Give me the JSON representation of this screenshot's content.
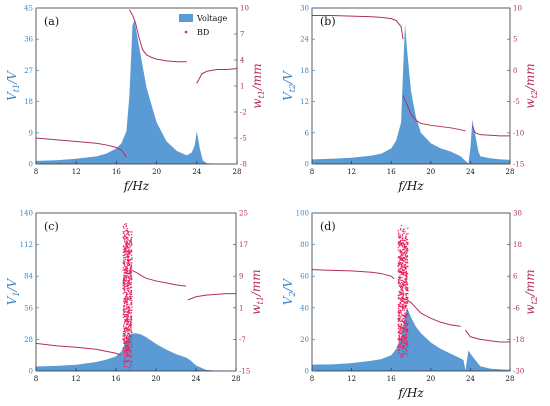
{
  "chart_data": [
    {
      "panel": "(a)",
      "type": "area",
      "xlabel": "f/Hz",
      "ylabel_left": "V_t1/V",
      "ylabel_right": "w_t1/mm",
      "xlim": [
        8,
        28
      ],
      "ylim_left": [
        0,
        45
      ],
      "ylim_right": [
        -8,
        10
      ],
      "xticks": [
        8,
        12,
        16,
        20,
        24,
        28
      ],
      "yticks_left": [
        0,
        9,
        18,
        27,
        36,
        45
      ],
      "yticks_right": [
        -8,
        -5,
        -2,
        1,
        4,
        7,
        10
      ],
      "legend": {
        "position": "top-right",
        "entries": [
          "Voltage",
          "BD"
        ]
      },
      "series": [
        {
          "name": "Voltage",
          "kind": "area",
          "color": "#5b9bd5",
          "x": [
            8,
            10,
            12,
            14,
            15,
            16,
            16.5,
            17,
            17.3,
            17.6,
            17.8,
            18,
            18.5,
            19,
            20,
            21,
            22,
            23,
            23.5,
            23.8,
            24,
            24.3,
            24.6,
            25,
            26,
            27,
            28
          ],
          "y": [
            0.9,
            1.1,
            1.5,
            2.2,
            3.0,
            4.5,
            6.0,
            9.5,
            20.0,
            40.0,
            41.5,
            38.0,
            30.0,
            22.0,
            12.0,
            6.5,
            3.8,
            2.5,
            3.3,
            5.5,
            9.5,
            4.5,
            1.0,
            0.2,
            0.1,
            0.1,
            0.1
          ]
        },
        {
          "name": "BD",
          "kind": "line",
          "color": "#b0305e",
          "axis": "right",
          "segments": [
            {
              "x": [
                8,
                10,
                12,
                14,
                15,
                16,
                16.5,
                17
              ],
              "y": [
                -5.0,
                -5.2,
                -5.4,
                -5.6,
                -5.8,
                -6.1,
                -6.4,
                -7.2
              ]
            },
            {
              "x": [
                17.3,
                17.6,
                17.9,
                18.2,
                18.6,
                19,
                19.5,
                20,
                21,
                22,
                23
              ],
              "y": [
                9.8,
                9.2,
                8.3,
                6.8,
                5.2,
                4.6,
                4.3,
                4.1,
                3.9,
                3.8,
                3.8
              ]
            },
            {
              "x": [
                24,
                24.5,
                25,
                25.5,
                26,
                27,
                28
              ],
              "y": [
                1.3,
                2.4,
                2.7,
                2.8,
                2.9,
                2.9,
                3.0
              ]
            }
          ]
        }
      ]
    },
    {
      "panel": "(b)",
      "type": "area",
      "xlabel": "f/Hz",
      "ylabel_left": "V_t2/V",
      "ylabel_right": "w_t2/mm",
      "xlim": [
        8,
        28
      ],
      "ylim_left": [
        0,
        30
      ],
      "ylim_right": [
        -15,
        10
      ],
      "xticks": [
        8,
        12,
        16,
        20,
        24,
        28
      ],
      "yticks_left": [
        0,
        6,
        12,
        18,
        24,
        30
      ],
      "yticks_right": [
        -15,
        -10,
        -5,
        0,
        5,
        10
      ],
      "series": [
        {
          "name": "Voltage",
          "kind": "area",
          "color": "#5b9bd5",
          "x": [
            8,
            10,
            12,
            14,
            15,
            16,
            16.5,
            17,
            17.2,
            17.4,
            17.6,
            18,
            18.5,
            19,
            20,
            21,
            22,
            23,
            23.5,
            23.8,
            24,
            24.2,
            24.4,
            24.8,
            25,
            26,
            27,
            28
          ],
          "y": [
            0.9,
            1.0,
            1.2,
            1.6,
            2.0,
            3.0,
            4.5,
            8.0,
            18.0,
            27.0,
            22.0,
            14.0,
            9.0,
            6.0,
            4.0,
            3.0,
            2.4,
            1.5,
            0.6,
            0.1,
            3.0,
            8.5,
            6.5,
            2.5,
            1.5,
            1.1,
            0.9,
            0.8
          ]
        },
        {
          "name": "BD",
          "kind": "line",
          "color": "#b0305e",
          "axis": "right",
          "segments": [
            {
              "x": [
                8,
                10,
                12,
                14,
                15,
                16,
                16.5,
                17,
                17.2
              ],
              "y": [
                8.8,
                8.8,
                8.7,
                8.6,
                8.5,
                8.3,
                8.0,
                7.0,
                5.0
              ]
            },
            {
              "x": [
                17.2,
                17.6,
                18,
                18.5,
                19,
                20,
                21,
                22,
                23,
                23.5
              ],
              "y": [
                -4.0,
                -5.5,
                -7.0,
                -8.0,
                -8.5,
                -8.8,
                -9.0,
                -9.2,
                -9.5,
                -9.7
              ]
            },
            {
              "x": [
                24.2,
                24.5,
                25,
                26,
                27,
                28
              ],
              "y": [
                -9.0,
                -10.0,
                -10.3,
                -10.4,
                -10.5,
                -10.5
              ]
            }
          ]
        }
      ]
    },
    {
      "panel": "(c)",
      "type": "area",
      "xlabel": "",
      "ylabel_left": "V_1/V",
      "ylabel_right": "w_t1/mm",
      "xlim": [
        8,
        28
      ],
      "ylim_left": [
        0,
        140
      ],
      "ylim_right": [
        -15,
        25
      ],
      "xticks": [
        8,
        12,
        16,
        20,
        24,
        28
      ],
      "yticks_left": [
        0,
        28,
        56,
        84,
        112,
        140
      ],
      "yticks_right": [
        -15,
        -7,
        1,
        9,
        17,
        25
      ],
      "series": [
        {
          "name": "Voltage",
          "kind": "area",
          "color": "#5b9bd5",
          "x": [
            8,
            10,
            12,
            14,
            15,
            16,
            16.5,
            16.8,
            17.0,
            17.3,
            17.6,
            18.0,
            18.5,
            19,
            20,
            21,
            22,
            23,
            23.2,
            23.5,
            24,
            25,
            26,
            27,
            28
          ],
          "y": [
            4.0,
            4.5,
            5.5,
            8.0,
            10.0,
            13.0,
            17.0,
            22.0,
            28.0,
            32.0,
            33.0,
            33.5,
            32.5,
            30.0,
            24.0,
            19.0,
            15.0,
            12.0,
            11.0,
            9.0,
            5.0,
            1.0,
            0.3,
            0.2,
            0.1
          ]
        },
        {
          "name": "BD",
          "kind": "line",
          "color": "#b0305e",
          "axis": "right",
          "segments": [
            {
              "x": [
                8,
                10,
                12,
                14,
                15,
                16,
                16.5
              ],
              "y": [
                -8.0,
                -8.6,
                -9.0,
                -9.5,
                -10.0,
                -10.5,
                -11.0
              ]
            },
            {
              "x": [
                17.6,
                18,
                18.5,
                19,
                20,
                21,
                22,
                23
              ],
              "y": [
                10.5,
                10.0,
                9.2,
                8.5,
                7.8,
                7.3,
                6.8,
                6.5
              ]
            },
            {
              "x": [
                23.2,
                24,
                25,
                26,
                27,
                28
              ],
              "y": [
                3.0,
                3.8,
                4.2,
                4.4,
                4.6,
                4.6
              ]
            }
          ]
        },
        {
          "name": "BD",
          "kind": "scatter-band",
          "color": "#e8245f",
          "axis": "right",
          "x_range": [
            16.7,
            17.6
          ],
          "y_range": [
            -15,
            23
          ]
        }
      ]
    },
    {
      "panel": "(d)",
      "type": "area",
      "xlabel": "f/Hz",
      "ylabel_left": "V_2/V",
      "ylabel_right": "w_t2/mm",
      "xlim": [
        8,
        28
      ],
      "ylim_left": [
        0,
        100
      ],
      "ylim_right": [
        -30,
        30
      ],
      "xticks": [
        8,
        12,
        16,
        20,
        24,
        28
      ],
      "yticks_left": [
        0,
        20,
        40,
        60,
        80,
        100
      ],
      "yticks_right": [
        -30,
        -18,
        -6,
        6,
        18,
        30
      ],
      "series": [
        {
          "name": "Voltage",
          "kind": "area",
          "color": "#5b9bd5",
          "x": [
            8,
            10,
            12,
            14,
            15,
            16,
            16.5,
            17,
            17.3,
            17.6,
            18,
            18.5,
            19,
            20,
            21,
            22,
            23,
            23.3,
            23.5,
            23.8,
            24,
            24.5,
            25,
            26,
            27,
            28
          ],
          "y": [
            4.0,
            4.2,
            5.0,
            6.5,
            7.5,
            10.0,
            14.0,
            22.0,
            32.0,
            40.0,
            34.0,
            28.0,
            24.0,
            18.0,
            14.0,
            11.0,
            8.0,
            7.0,
            0.5,
            13.0,
            11.0,
            7.0,
            3.0,
            1.5,
            1.0,
            0.8
          ]
        },
        {
          "name": "BD",
          "kind": "line",
          "color": "#b0305e",
          "axis": "right",
          "segments": [
            {
              "x": [
                8,
                10,
                12,
                14,
                15,
                16,
                16.3
              ],
              "y": [
                8.5,
                8.2,
                8.0,
                7.5,
                7.0,
                6.0,
                5.0
              ]
            },
            {
              "x": [
                17.6,
                18,
                18.5,
                19,
                20,
                21,
                22,
                23
              ],
              "y": [
                -3.0,
                -4.0,
                -6.0,
                -8.0,
                -10.0,
                -11.5,
                -12.5,
                -13.0
              ]
            },
            {
              "x": [
                23.5,
                24,
                25,
                26,
                27,
                28
              ],
              "y": [
                -14.5,
                -17.0,
                -18.0,
                -18.5,
                -19.0,
                -19.0
              ]
            }
          ]
        },
        {
          "name": "BD",
          "kind": "scatter-band",
          "color": "#e8245f",
          "axis": "right",
          "x_range": [
            16.7,
            17.7
          ],
          "y_range": [
            -26,
            26
          ]
        }
      ]
    }
  ]
}
